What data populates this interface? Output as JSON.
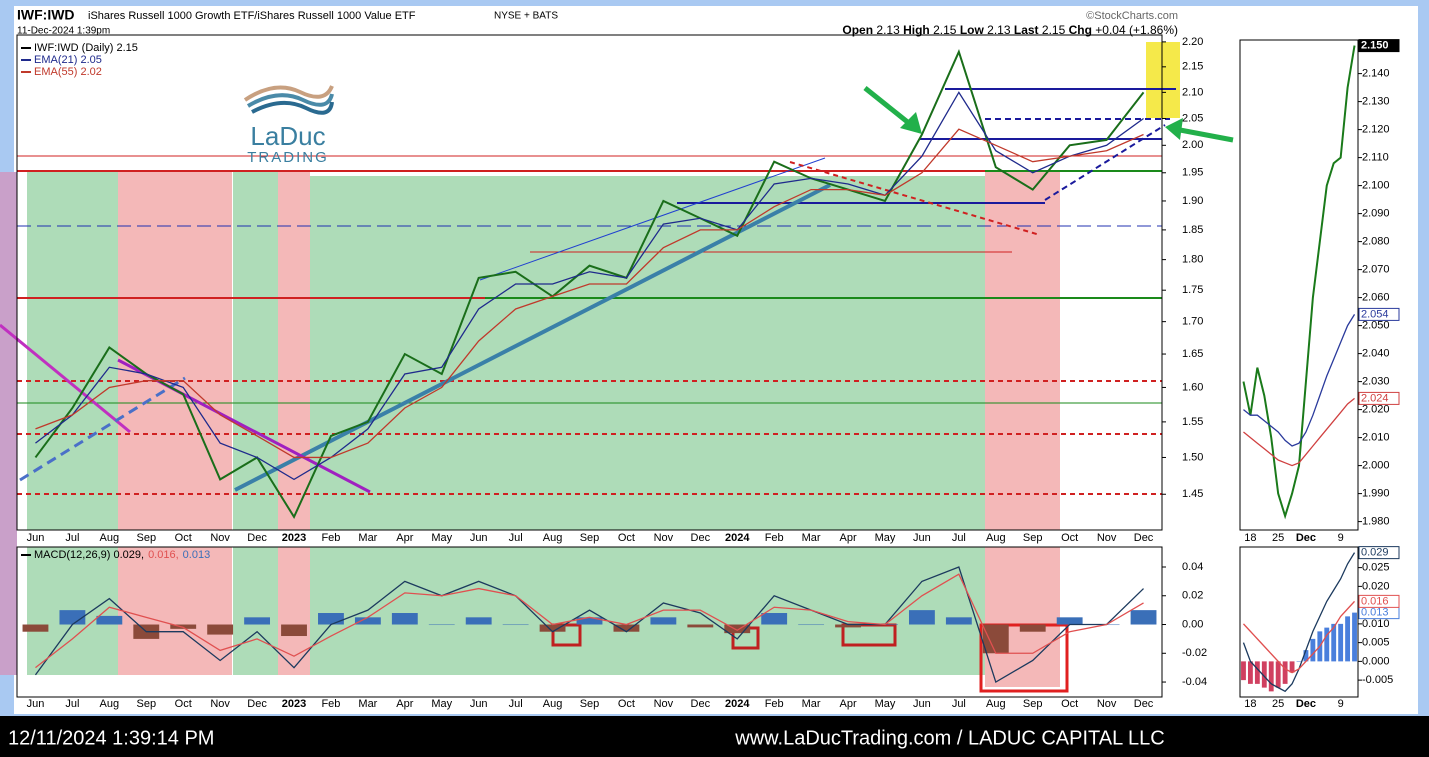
{
  "header": {
    "symbol": "IWF:IWD",
    "description": "iShares Russell 1000 Growth ETF/iShares Russell 1000 Value ETF",
    "exchange": "NYSE + BATS",
    "source": "©StockCharts.com",
    "timestamp": "11-Dec-2024 1:39pm",
    "quote": [
      [
        "Open",
        "2.13"
      ],
      [
        "High",
        "2.15"
      ],
      [
        "Low",
        "2.13"
      ],
      [
        "Last",
        "2.15"
      ],
      [
        "Chg",
        "+0.04 (+1.86%)"
      ]
    ]
  },
  "logo": {
    "name": "LaDuc",
    "tagline": "TRADING"
  },
  "footer": {
    "time": "12/11/2024 1:39:14 PM",
    "credit": "www.LaDucTrading.com / LADUC CAPITAL LLC"
  },
  "chart_data": [
    {
      "type": "line",
      "log": true,
      "categories": [
        "Jun",
        "Jul",
        "Aug",
        "Sep",
        "Oct",
        "Nov",
        "Dec",
        "2023",
        "Feb",
        "Mar",
        "Apr",
        "May",
        "Jun",
        "Jul",
        "Aug",
        "Sep",
        "Oct",
        "Nov",
        "Dec",
        "2024",
        "Feb",
        "Mar",
        "Apr",
        "May",
        "Jun",
        "Jul",
        "Aug",
        "Sep",
        "Oct",
        "Nov",
        "Dec"
      ],
      "ylim": [
        1.403,
        2.214
      ],
      "yticks": [
        1.45,
        {
          "value": 1.5,
          "label": "1.50"
        },
        1.55,
        {
          "value": 1.6,
          "label": "1.60"
        },
        1.65,
        {
          "value": 1.7,
          "label": "1.70"
        },
        1.75,
        {
          "value": 1.8,
          "label": "1.80"
        },
        1.85,
        {
          "value": 1.9,
          "label": "1.90"
        },
        1.95,
        {
          "value": 2,
          "label": "2.00"
        },
        2.05,
        {
          "value": 2.1,
          "label": "2.10"
        },
        2.15,
        {
          "value": 2.2,
          "label": "2.20"
        }
      ],
      "series": [
        {
          "name": "IWF:IWD (Daily) 2.15",
          "color": "#1a6e1a",
          "values": [
            1.5,
            1.57,
            1.66,
            1.62,
            1.59,
            1.47,
            1.5,
            1.42,
            1.53,
            1.55,
            1.65,
            1.62,
            1.77,
            1.78,
            1.74,
            1.79,
            1.77,
            1.9,
            1.87,
            1.84,
            1.97,
            1.94,
            1.92,
            1.9,
            2.02,
            2.18,
            1.96,
            1.92,
            2.0,
            2.01,
            2.1
          ]
        },
        {
          "name": "EMA(21) 2.05",
          "color": "#1f2a8c",
          "values": [
            1.52,
            1.56,
            1.63,
            1.62,
            1.6,
            1.52,
            1.5,
            1.47,
            1.5,
            1.54,
            1.62,
            1.63,
            1.72,
            1.76,
            1.76,
            1.78,
            1.77,
            1.86,
            1.87,
            1.85,
            1.93,
            1.94,
            1.93,
            1.91,
            1.98,
            2.1,
            1.99,
            1.95,
            1.98,
            2.0,
            2.05
          ]
        },
        {
          "name": "EMA(55) 2.02",
          "color": "#c0392b",
          "values": [
            1.54,
            1.56,
            1.6,
            1.61,
            1.61,
            1.56,
            1.53,
            1.5,
            1.5,
            1.52,
            1.57,
            1.6,
            1.67,
            1.72,
            1.74,
            1.76,
            1.76,
            1.82,
            1.85,
            1.85,
            1.89,
            1.92,
            1.92,
            1.91,
            1.95,
            2.03,
            2.0,
            1.97,
            1.98,
            1.99,
            2.02
          ]
        }
      ]
    },
    {
      "type": "line",
      "last_value_boxes": true,
      "categories": [
        null,
        "18",
        null,
        null,
        null,
        "25",
        null,
        null,
        null,
        "Dec",
        null,
        null,
        null,
        null,
        "9",
        null,
        null
      ],
      "ylim": [
        1.977,
        2.152
      ],
      "yticks": [
        {
          "value": 1.98,
          "label": "1.980"
        },
        {
          "value": 1.99,
          "label": "1.990"
        },
        {
          "value": 2,
          "label": "2.000"
        },
        {
          "value": 2.01,
          "label": "2.010"
        },
        {
          "value": 2.02,
          "label": "2.020"
        },
        {
          "value": 2.03,
          "label": "2.030"
        },
        {
          "value": 2.04,
          "label": "2.040"
        },
        {
          "value": 2.05,
          "label": "2.050"
        },
        {
          "value": 2.06,
          "label": "2.060"
        },
        {
          "value": 2.07,
          "label": "2.070"
        },
        {
          "value": 2.08,
          "label": "2.080"
        },
        {
          "value": 2.09,
          "label": "2.090"
        },
        {
          "value": 2.1,
          "label": "2.100"
        },
        {
          "value": 2.11,
          "label": "2.110"
        },
        {
          "value": 2.12,
          "label": "2.120"
        },
        {
          "value": 2.13,
          "label": "2.130"
        },
        {
          "value": 2.14,
          "label": "2.140"
        }
      ],
      "series": [
        {
          "color": "#1a7a1a",
          "box_color": "#000000",
          "last_label": "2.150",
          "values": [
            2.03,
            2.018,
            2.035,
            2.025,
            2.01,
            1.99,
            1.982,
            1.99,
            2.0,
            2.03,
            2.06,
            2.08,
            2.1,
            2.108,
            2.11,
            2.135,
            2.15
          ]
        },
        {
          "color": "#2a3a9c",
          "box_color": "#2a3a9c",
          "values": [
            2.02,
            2.018,
            2.018,
            2.016,
            2.014,
            2.012,
            2.009,
            2.007,
            2.008,
            2.012,
            2.018,
            2.025,
            2.032,
            2.038,
            2.044,
            2.05,
            2.054
          ]
        },
        {
          "color": "#d04040",
          "box_color": "#d04040",
          "values": [
            2.012,
            2.01,
            2.008,
            2.006,
            2.004,
            2.002,
            2.001,
            2.0,
            2.001,
            2.004,
            2.007,
            2.01,
            2.013,
            2.016,
            2.019,
            2.022,
            2.024
          ]
        }
      ]
    },
    {
      "type": "line",
      "ylim": [
        -0.0504,
        0.0539
      ],
      "yticks": [
        0.04,
        0.02,
        {
          "value": 0,
          "label": "0.00"
        },
        -0.02,
        -0.04
      ],
      "series": [
        {
          "name": "MACD(12,26,9) 0.029,",
          "color": "#1c3a5e",
          "values": [
            -0.035,
            0.0,
            0.018,
            -0.005,
            -0.005,
            -0.025,
            -0.005,
            -0.03,
            0.0,
            0.01,
            0.03,
            0.02,
            0.03,
            0.02,
            -0.005,
            0.01,
            -0.005,
            0.015,
            0.008,
            -0.01,
            0.02,
            0.01,
            0.0,
            0.0,
            0.03,
            0.04,
            -0.04,
            -0.025,
            0.0,
            0.0,
            0.025
          ]
        },
        {
          "name": "0.016,",
          "color": "#e05050",
          "values": [
            -0.03,
            -0.01,
            0.012,
            0.005,
            -0.002,
            -0.018,
            -0.01,
            -0.022,
            -0.008,
            0.005,
            0.022,
            0.02,
            0.025,
            0.02,
            0.0,
            0.005,
            0.0,
            0.01,
            0.01,
            -0.004,
            0.012,
            0.01,
            0.002,
            0.0,
            0.02,
            0.035,
            -0.02,
            -0.02,
            -0.005,
            0.0,
            0.015
          ]
        },
        {
          "name": "0.013",
          "kind": "bar",
          "color": "#3a6fb8",
          "neg_color": "#8b4a3a",
          "values": [
            -0.005,
            0.01,
            0.006,
            -0.01,
            -0.003,
            -0.007,
            0.005,
            -0.008,
            0.008,
            0.005,
            0.008,
            0.0,
            0.005,
            0.0,
            -0.005,
            0.005,
            -0.005,
            0.005,
            -0.002,
            -0.006,
            0.008,
            0.0,
            -0.002,
            0.0,
            0.01,
            0.005,
            -0.02,
            -0.005,
            0.005,
            0.0,
            0.01
          ]
        }
      ]
    },
    {
      "type": "line",
      "last_value_boxes": true,
      "ylim": [
        -0.0095,
        0.0305
      ],
      "yticks": [
        0.025,
        {
          "value": 0.02,
          "label": "0.020"
        },
        0.015,
        {
          "value": 0.01,
          "label": "0.010"
        },
        0.005,
        {
          "value": 0,
          "label": "0.000"
        },
        -0.005
      ],
      "series": [
        {
          "color": "#1c3a5e",
          "box_color": "#1c3a5e",
          "values": [
            0.005,
            0.0,
            -0.002,
            -0.004,
            -0.006,
            -0.007,
            -0.008,
            -0.006,
            -0.002,
            0.003,
            0.008,
            0.012,
            0.016,
            0.019,
            0.022,
            0.026,
            0.029
          ]
        },
        {
          "color": "#e05050",
          "box_color": "#e05050",
          "values": [
            0.01,
            0.008,
            0.006,
            0.004,
            0.002,
            0.0,
            -0.002,
            -0.003,
            -0.002,
            0.0,
            0.002,
            0.004,
            0.007,
            0.009,
            0.012,
            0.014,
            0.016
          ]
        },
        {
          "kind": "bar",
          "color": "#4a7fdc",
          "neg_color": "#d04060",
          "box_color": "#4a7fdc",
          "values": [
            -0.005,
            -0.006,
            -0.006,
            -0.007,
            -0.008,
            -0.007,
            -0.006,
            -0.003,
            0.0,
            0.003,
            0.006,
            0.008,
            0.009,
            0.01,
            0.01,
            0.012,
            0.013
          ]
        }
      ]
    }
  ]
}
